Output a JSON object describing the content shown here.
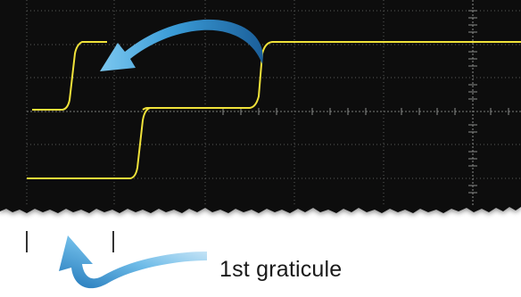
{
  "annotation": {
    "text": "1st graticule"
  },
  "colors": {
    "screen_background": "#0e0f0e",
    "grid": "#5a5d5a",
    "waveform": "#f0e23a",
    "arrow": "#2a86c4"
  },
  "icons": {
    "upper_arrow": "curved-arrow-left-icon",
    "lower_arrow": "curved-arrow-up-icon"
  }
}
